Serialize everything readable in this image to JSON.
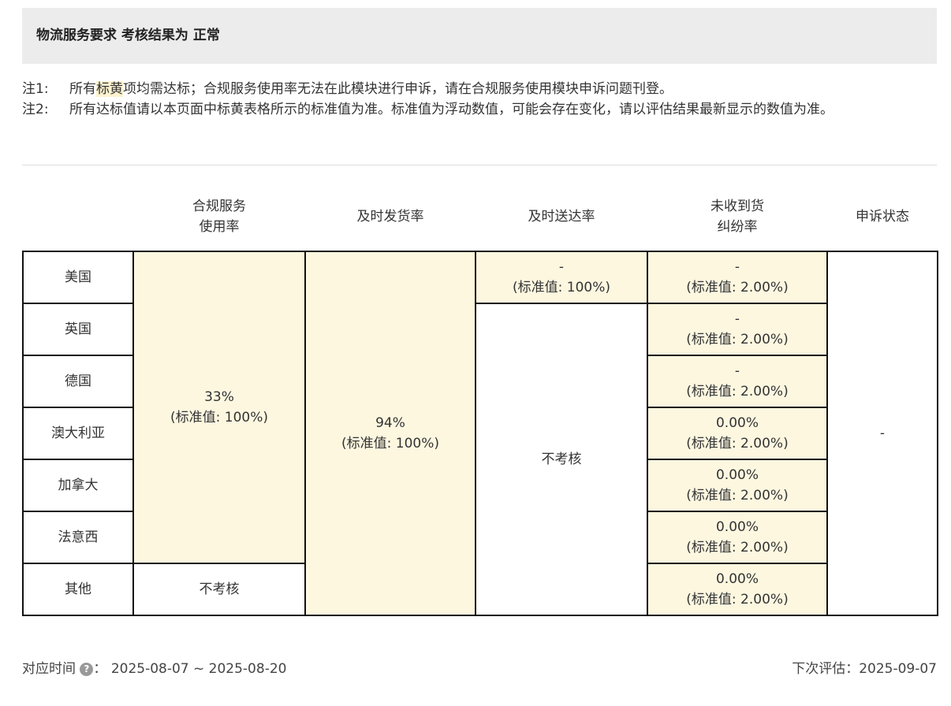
{
  "header": {
    "title": "物流服务要求 考核结果为 正常"
  },
  "notes": [
    {
      "label": "注1:",
      "pre": "所有",
      "highlight": "标黄",
      "post": "项均需达标；合规服务使用率无法在此模块进行申诉，请在合规服务使用模块申诉问题刊登。"
    },
    {
      "label": "注2:",
      "text": "所有达标值请以本页面中标黄表格所示的标准值为准。标准值为浮动数值，可能会存在变化，请以评估结果最新显示的数值为准。"
    }
  ],
  "table": {
    "columns": [
      "合规服务\n使用率",
      "及时发货率",
      "及时送达率",
      "未收到货\n纠纷率",
      "申诉状态"
    ],
    "regions": [
      "美国",
      "英国",
      "德国",
      "澳大利亚",
      "加拿大",
      "法意西",
      "其他"
    ],
    "compliance": {
      "value": "33%",
      "standard": "(标准值: 100%)",
      "other": "不考核"
    },
    "ontime_ship": {
      "value": "94%",
      "standard": "(标准值: 100%)"
    },
    "ontime_delivery": {
      "us_value": "-",
      "us_standard": "(标准值: 100%)",
      "others": "不考核"
    },
    "dispute_rate": [
      {
        "value": "-",
        "standard": "(标准值: 2.00%)"
      },
      {
        "value": "-",
        "standard": "(标准值: 2.00%)"
      },
      {
        "value": "-",
        "standard": "(标准值: 2.00%)"
      },
      {
        "value": "0.00%",
        "standard": "(标准值: 2.00%)"
      },
      {
        "value": "0.00%",
        "standard": "(标准值: 2.00%)"
      },
      {
        "value": "0.00%",
        "standard": "(标准值: 2.00%)"
      },
      {
        "value": "0.00%",
        "standard": "(标准值: 2.00%)"
      }
    ],
    "appeal_status": "-"
  },
  "footer": {
    "period_label": "对应时间",
    "help_icon": "question-circle-icon",
    "colon": "：",
    "period": "2025-08-07 ~ 2025-08-20",
    "next_label": "下次评估：",
    "next_date": "2025-09-07"
  },
  "colors": {
    "highlight": "#fdf7e0",
    "header_bg": "#ececec"
  }
}
